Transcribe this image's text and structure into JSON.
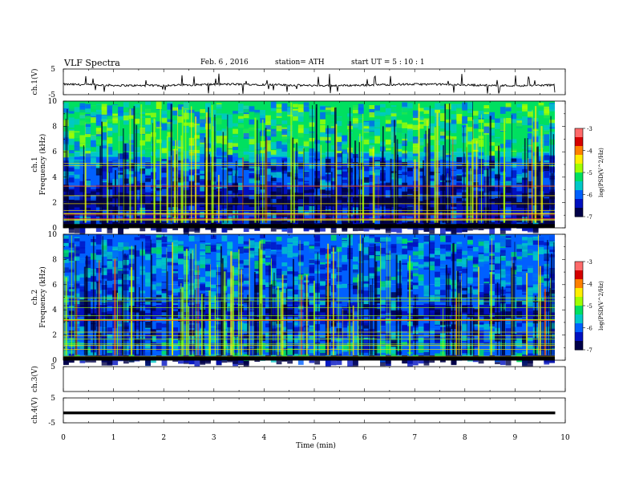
{
  "header": {
    "title": "VLF  Spectra",
    "date": "Feb. 6  , 2016",
    "station": "station= ATH",
    "start_ut": "start  UT  =   5  : 10 : 1"
  },
  "colorbar": {
    "label": "log(PSD(V^2/Hz)",
    "ticks": [
      "-3",
      "-4",
      "-5",
      "-6",
      "-7"
    ],
    "colors": [
      "#ff6a6a",
      "#d40000",
      "#ff8000",
      "#ffee00",
      "#a0ff00",
      "#00e060",
      "#00c8c8",
      "#0060ff",
      "#0010c0",
      "#000048"
    ]
  },
  "chart_data": [
    {
      "type": "line",
      "panel": "ch.1 time series",
      "ylabel": "ch.1(V)",
      "ylim": [
        -5,
        5
      ],
      "y_ticks": [
        "5",
        "-5"
      ],
      "xlim": [
        0,
        10
      ],
      "description_values": {
        "baseline_V": -1.2,
        "noise_V": 0.5,
        "spike_max_V": 3.0,
        "record_end_min": 9.8
      }
    },
    {
      "type": "heatmap",
      "panel": "ch.1 spectrogram",
      "ylabel": "ch.1\nFrequency  (kHz)",
      "ylim": [
        0,
        10
      ],
      "y_ticks": [
        "0",
        "2",
        "4",
        "6",
        "8",
        "10"
      ],
      "xlim": [
        0,
        10
      ],
      "value_range": [
        -7,
        -3
      ],
      "bands_khz": [
        {
          "from": 0,
          "to": 0.6,
          "level": -7
        },
        {
          "from": 0.6,
          "to": 1.8,
          "level": -6.4
        },
        {
          "from": 1.8,
          "to": 2.4,
          "level": -7
        },
        {
          "from": 2.4,
          "to": 3.4,
          "level": -6.7
        },
        {
          "from": 3.4,
          "to": 5.6,
          "level": -6.3
        },
        {
          "from": 5.6,
          "to": 6.0,
          "level": -5.8
        },
        {
          "from": 6.0,
          "to": 10,
          "level": -5.4
        }
      ]
    },
    {
      "type": "heatmap",
      "panel": "ch.2 spectrogram",
      "ylabel": "ch.2\nFrequency  (kHz)",
      "ylim": [
        0,
        10
      ],
      "y_ticks": [
        "0",
        "2",
        "4",
        "6",
        "8",
        "10"
      ],
      "xlim": [
        0,
        10
      ],
      "value_range": [
        -7,
        -3
      ],
      "bands_khz": [
        {
          "from": 0,
          "to": 0.4,
          "level": -7
        },
        {
          "from": 0.4,
          "to": 1.6,
          "level": -5.9
        },
        {
          "from": 1.6,
          "to": 3.4,
          "level": -6.2
        },
        {
          "from": 3.4,
          "to": 4.4,
          "level": -6.6
        },
        {
          "from": 4.4,
          "to": 6.0,
          "level": -6.2
        },
        {
          "from": 6.0,
          "to": 10,
          "level": -6.0
        }
      ]
    },
    {
      "type": "line",
      "panel": "ch.3 time series",
      "ylabel": "ch.3(V)",
      "ylim": [
        -5,
        5
      ],
      "y_ticks": [
        "5"
      ],
      "xlim": [
        0,
        10
      ],
      "description_values": {
        "signal": "none"
      }
    },
    {
      "type": "line",
      "panel": "ch.4 time series",
      "ylabel": "ch.4(V)",
      "ylim": [
        -5,
        5
      ],
      "y_ticks": [
        "5",
        "-5"
      ],
      "xlim": [
        0,
        10
      ],
      "description_values": {
        "level_V": -1.0,
        "record_end_min": 9.8
      }
    }
  ],
  "x_axis": {
    "label": "Time  (min)",
    "ticks": [
      "0",
      "1",
      "2",
      "3",
      "4",
      "5",
      "6",
      "7",
      "8",
      "9",
      "10"
    ]
  }
}
